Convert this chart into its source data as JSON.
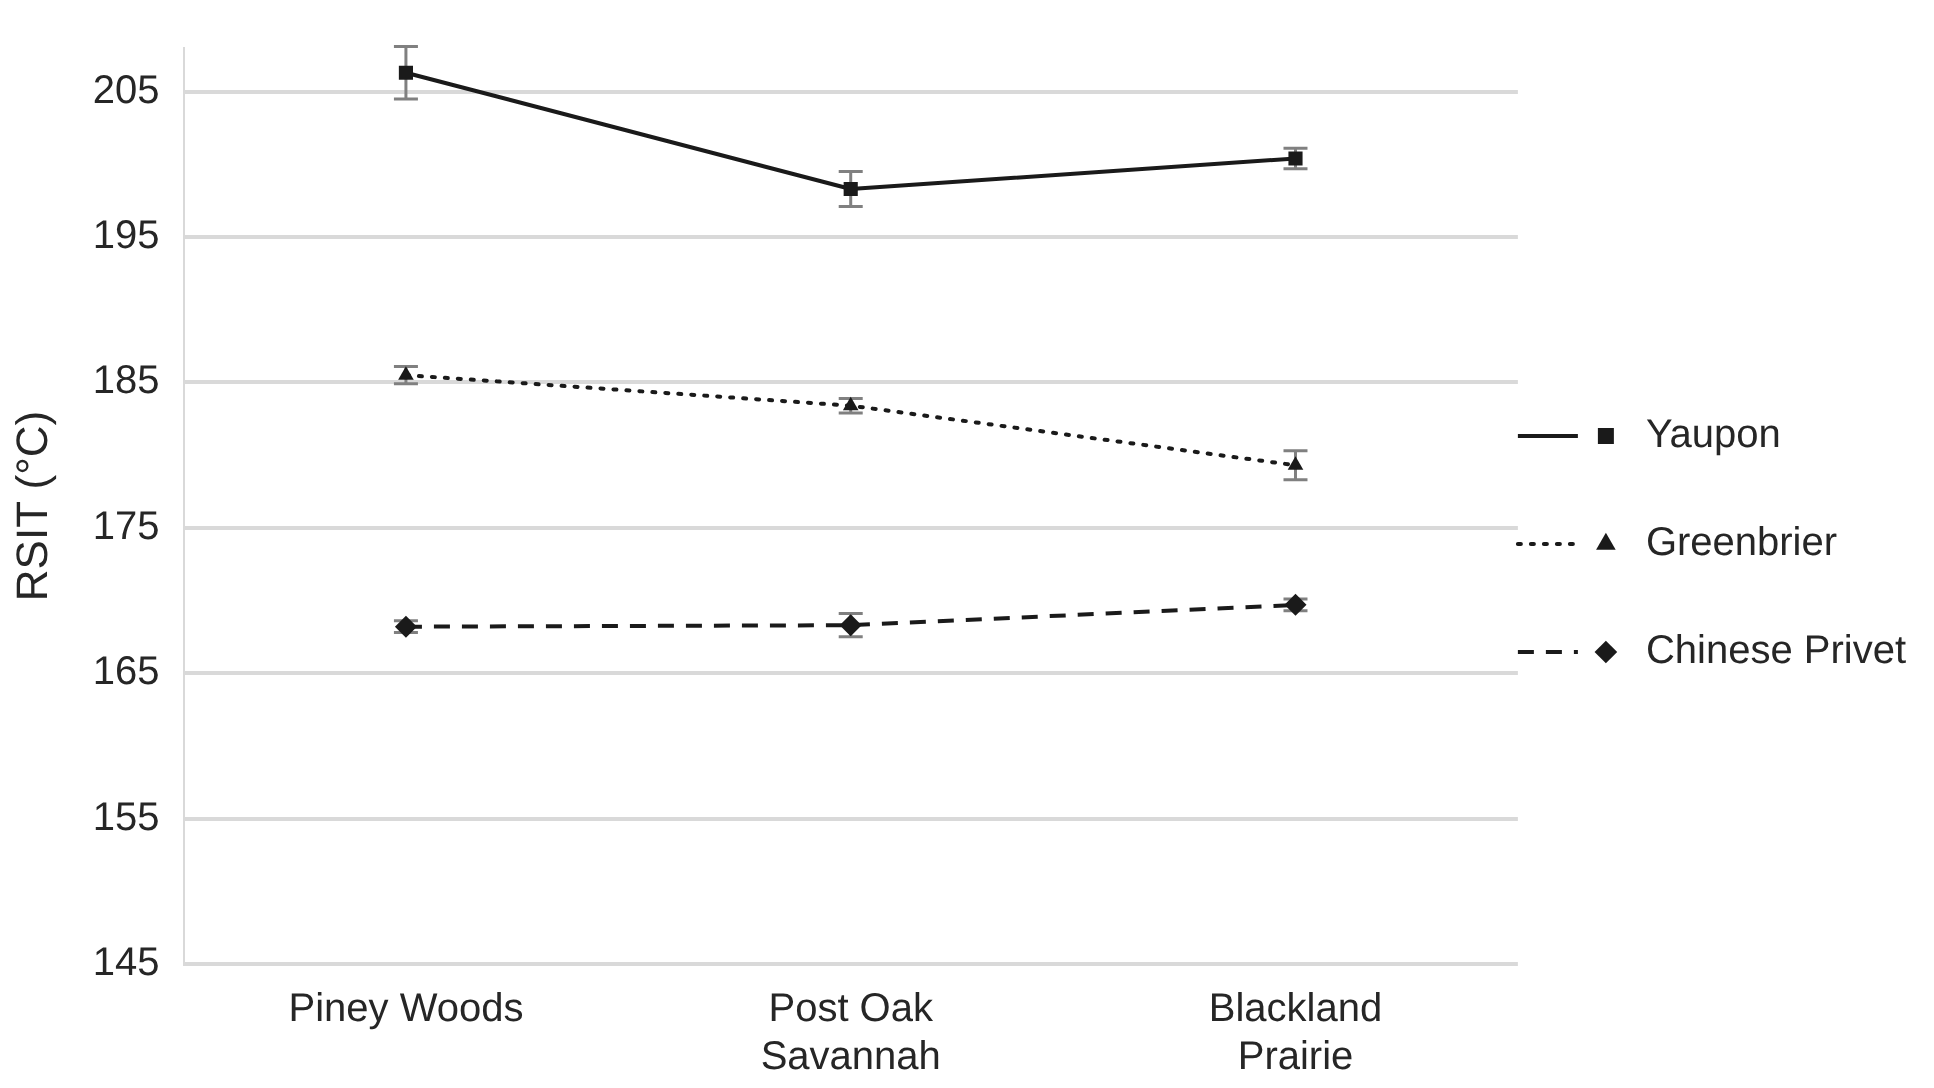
{
  "chart_data": {
    "type": "line",
    "ylabel": "RSIT (°C)",
    "categories": [
      "Piney Woods",
      [
        "Post Oak",
        "Savannah"
      ],
      [
        "Blackland",
        "Prairie"
      ]
    ],
    "series": [
      {
        "name": "Yaupon",
        "color": "#1a1a1a",
        "marker": "square",
        "line_style": "solid",
        "values": [
          206.3,
          198.3,
          200.4
        ],
        "errors": [
          1.8,
          1.2,
          0.7
        ]
      },
      {
        "name": "Greenbrier",
        "color": "#1a1a1a",
        "marker": "triangle",
        "line_style": "dotted",
        "values": [
          185.5,
          183.4,
          179.3
        ],
        "errors": [
          0.6,
          0.5,
          1.0
        ]
      },
      {
        "name": "Chinese Privet",
        "color": "#1a1a1a",
        "marker": "diamond",
        "line_style": "dashed",
        "values": [
          168.2,
          168.3,
          169.7
        ],
        "errors": [
          0.4,
          0.8,
          0.4
        ]
      }
    ],
    "ylim": [
      145,
      208
    ],
    "yticks": [
      145,
      155,
      165,
      175,
      185,
      195,
      205
    ],
    "grid": "y",
    "legend": "right"
  }
}
